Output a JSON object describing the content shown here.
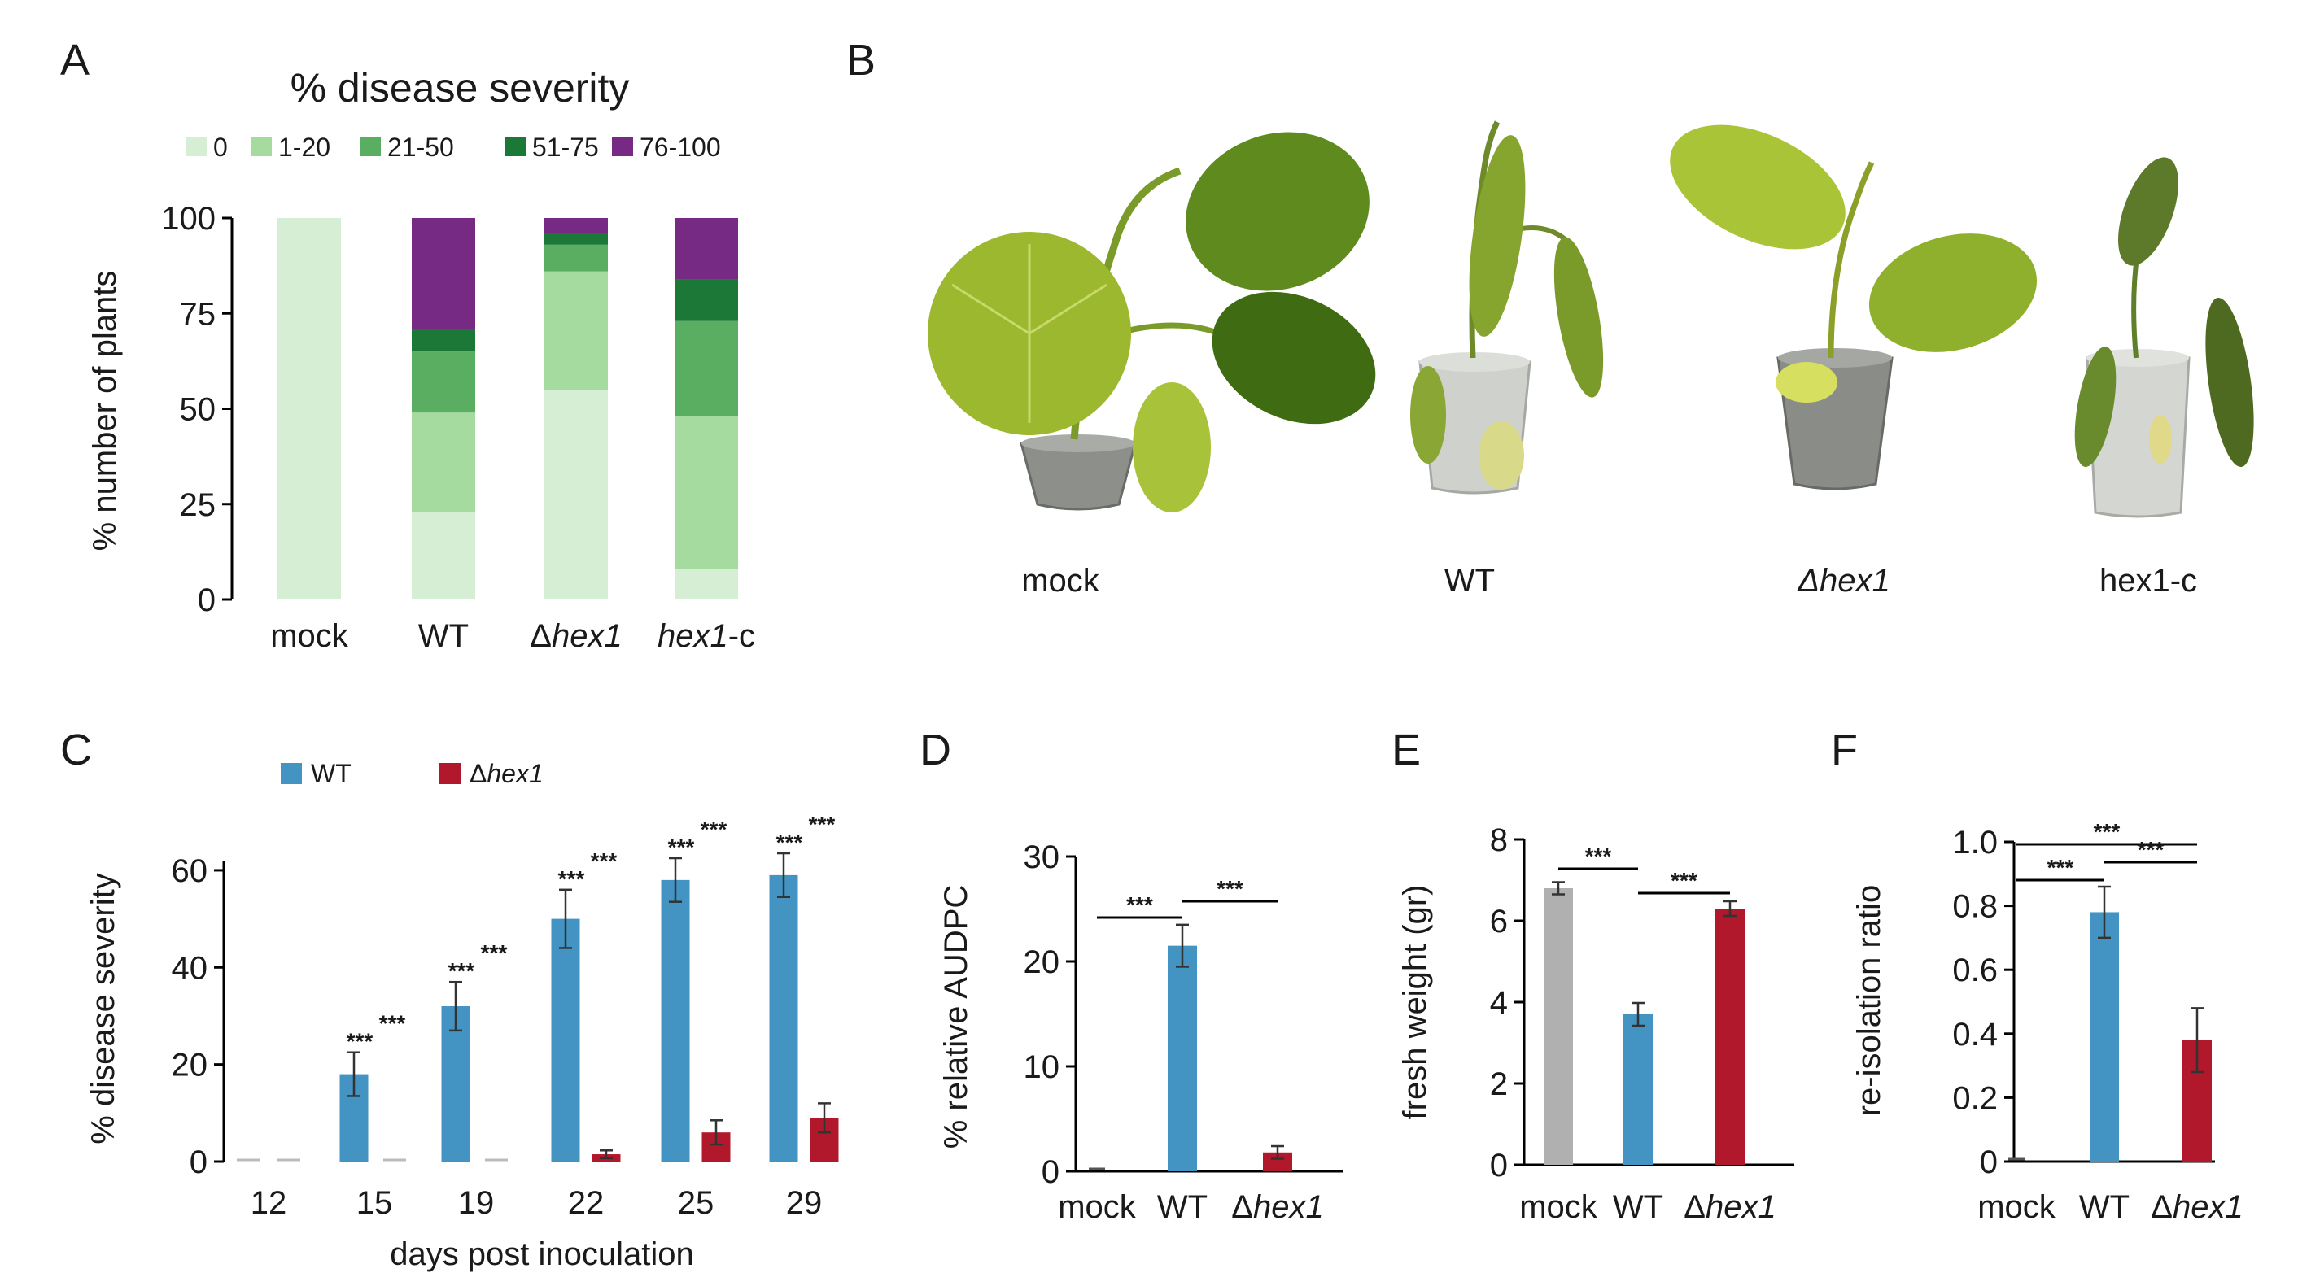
{
  "chart_data": [
    {
      "panel": "A",
      "type": "bar",
      "stacked": true,
      "title": "% disease severity",
      "ylabel": "% number of plants",
      "categories": [
        "mock",
        "WT",
        "Δhex1",
        "hex1-c"
      ],
      "ylim": [
        0,
        100
      ],
      "yticks": [
        0,
        25,
        50,
        75,
        100
      ],
      "series": [
        {
          "name": "0",
          "color": "#d6efd4",
          "values": [
            100,
            23,
            55,
            8
          ]
        },
        {
          "name": "1-20",
          "color": "#a6dba0",
          "values": [
            0,
            26,
            31,
            40
          ]
        },
        {
          "name": "21-50",
          "color": "#5aae61",
          "values": [
            0,
            16,
            7,
            25
          ]
        },
        {
          "name": "51-75",
          "color": "#1b7837",
          "values": [
            0,
            6,
            3,
            11
          ]
        },
        {
          "name": "76-100",
          "color": "#762a83",
          "values": [
            0,
            29,
            4,
            16
          ]
        }
      ]
    },
    {
      "panel": "C",
      "type": "bar",
      "xlabel": "days post inoculation",
      "ylabel": "% disease severity",
      "categories": [
        "12",
        "15",
        "19",
        "22",
        "25",
        "29"
      ],
      "ylim": [
        0,
        62
      ],
      "yticks": [
        0,
        20,
        40,
        60
      ],
      "significance": "***",
      "series": [
        {
          "name": "WT",
          "color": "#4393c3",
          "values": [
            0,
            18,
            32,
            50,
            58,
            59
          ],
          "errors": [
            0,
            4.5,
            5,
            6,
            4.5,
            4.5
          ]
        },
        {
          "name": "Δhex1",
          "color": "#b2182b",
          "values": [
            0,
            0,
            0,
            1.5,
            6,
            9
          ],
          "errors": [
            0,
            0,
            0,
            0.8,
            2.5,
            3
          ]
        }
      ]
    },
    {
      "panel": "D",
      "type": "bar",
      "ylabel": "% relative AUDPC",
      "categories": [
        "mock",
        "WT",
        "Δhex1"
      ],
      "ylim": [
        0,
        30
      ],
      "yticks": [
        0,
        10,
        20,
        30
      ],
      "values": [
        0,
        21.5,
        1.8
      ],
      "errors": [
        0,
        2,
        0.6
      ],
      "colors": [
        "#b0b0b0",
        "#4393c3",
        "#b2182b"
      ],
      "significance": "***"
    },
    {
      "panel": "E",
      "type": "bar",
      "ylabel": "fresh weight (gr)",
      "categories": [
        "mock",
        "WT",
        "Δhex1"
      ],
      "ylim": [
        0,
        8
      ],
      "yticks": [
        0,
        2,
        4,
        6,
        8
      ],
      "values": [
        6.8,
        3.7,
        6.3
      ],
      "errors": [
        0.15,
        0.28,
        0.18
      ],
      "colors": [
        "#b0b0b0",
        "#4393c3",
        "#b2182b"
      ],
      "significance": "***"
    },
    {
      "panel": "F",
      "type": "bar",
      "ylabel": "re-isolation ratio",
      "categories": [
        "mock",
        "WT",
        "Δhex1"
      ],
      "ylim": [
        0,
        1.0
      ],
      "yticks": [
        "0",
        "0.2",
        "0.4",
        "0.6",
        "0.8",
        "1.0"
      ],
      "values": [
        0,
        0.78,
        0.38
      ],
      "errors": [
        0,
        0.08,
        0.1
      ],
      "colors": [
        "#b0b0b0",
        "#4393c3",
        "#b2182b"
      ],
      "significance": "***"
    }
  ],
  "panels": {
    "A": "A",
    "B": "B",
    "C": "C",
    "D": "D",
    "E": "E",
    "F": "F"
  },
  "photo_labels": [
    "mock",
    "WT",
    "Δhex1",
    "hex1-c"
  ]
}
